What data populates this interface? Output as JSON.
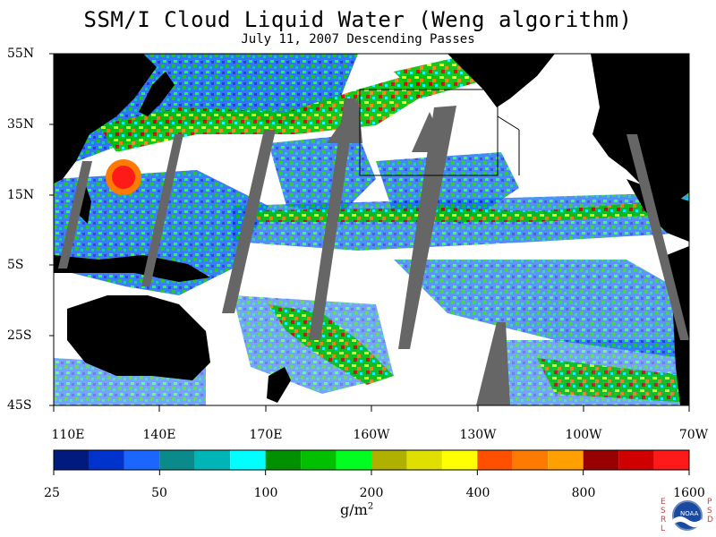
{
  "title": "SSM/I Cloud Liquid Water (Weng algorithm)",
  "subtitle": "July 11, 2007  Descending Passes",
  "latitude_labels": [
    "55N",
    "35N",
    "15N",
    "5S",
    "25S",
    "45S"
  ],
  "longitude_labels": [
    "110E",
    "140E",
    "170E",
    "160W",
    "130W",
    "100W",
    "70W"
  ],
  "colorbar": {
    "tick_labels": [
      "25",
      "50",
      "100",
      "200",
      "400",
      "800",
      "1600"
    ],
    "colors": [
      "#001a80",
      "#0033cc",
      "#1a66ff",
      "#0a8a8a",
      "#00b5b5",
      "#00ffff",
      "#009000",
      "#00c000",
      "#00ff20",
      "#b0b000",
      "#e0e000",
      "#ffff00",
      "#ff5000",
      "#ff7a00",
      "#ffa000",
      "#990000",
      "#d00000",
      "#ff1a1a"
    ]
  },
  "units": {
    "main": "g/m",
    "exponent": "2"
  },
  "logo": {
    "name": "NOAA",
    "left_letters": "ESRL",
    "right_letters": "PSD"
  },
  "map_colors": {
    "land": "#000000",
    "no_data": "#666666",
    "clear": "#ffffff",
    "box": "#000000"
  }
}
